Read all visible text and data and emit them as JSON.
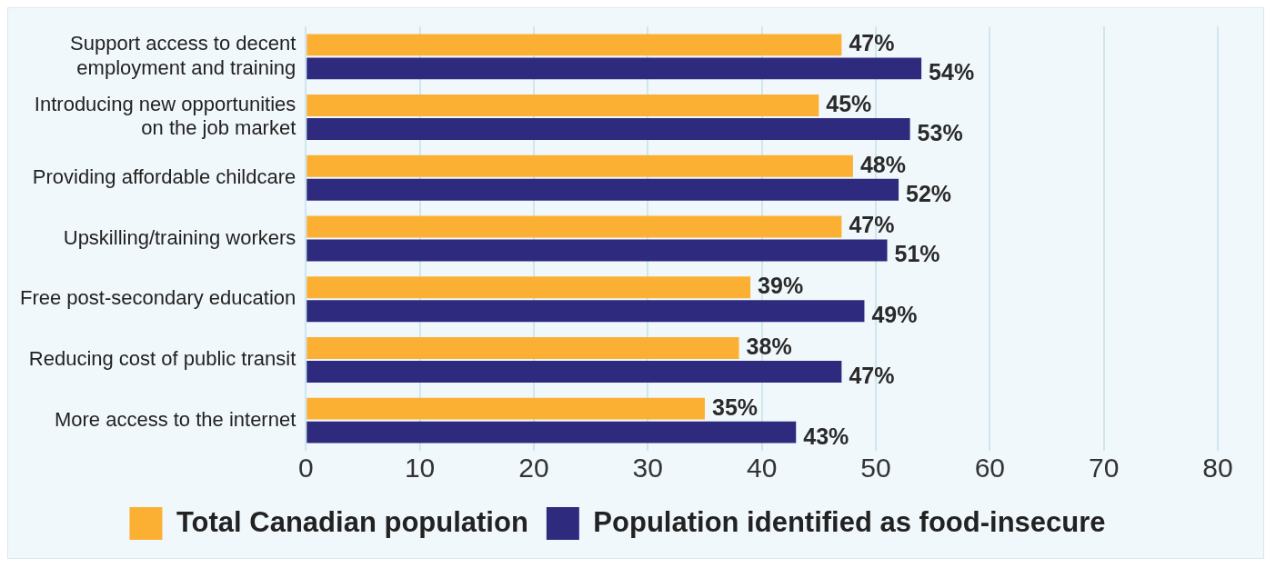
{
  "chart_data": {
    "type": "bar",
    "orientation": "horizontal",
    "categories": [
      "Support access to decent employment and training",
      "Introducing new opportunities on the job market",
      "Providing affordable childcare",
      "Upskilling/training workers",
      "Free post-secondary education",
      "Reducing cost of public transit",
      "More access to the internet"
    ],
    "series": [
      {
        "name": "Total Canadian population",
        "color": "#fbb034",
        "values": [
          47,
          45,
          48,
          47,
          39,
          38,
          35
        ],
        "value_labels": [
          "47%",
          "45%",
          "48%",
          "47%",
          "39%",
          "38%",
          "35%"
        ]
      },
      {
        "name": "Population identified as food-insecure",
        "color": "#2e2a7e",
        "values": [
          54,
          53,
          52,
          51,
          49,
          47,
          43
        ],
        "value_labels": [
          "54%",
          "53%",
          "52%",
          "51%",
          "49%",
          "47%",
          "43%"
        ]
      }
    ],
    "xlim": [
      0,
      80
    ],
    "xticks": [
      0,
      10,
      20,
      30,
      40,
      50,
      60,
      70,
      80
    ],
    "grid": "x",
    "legend": "bottom"
  }
}
